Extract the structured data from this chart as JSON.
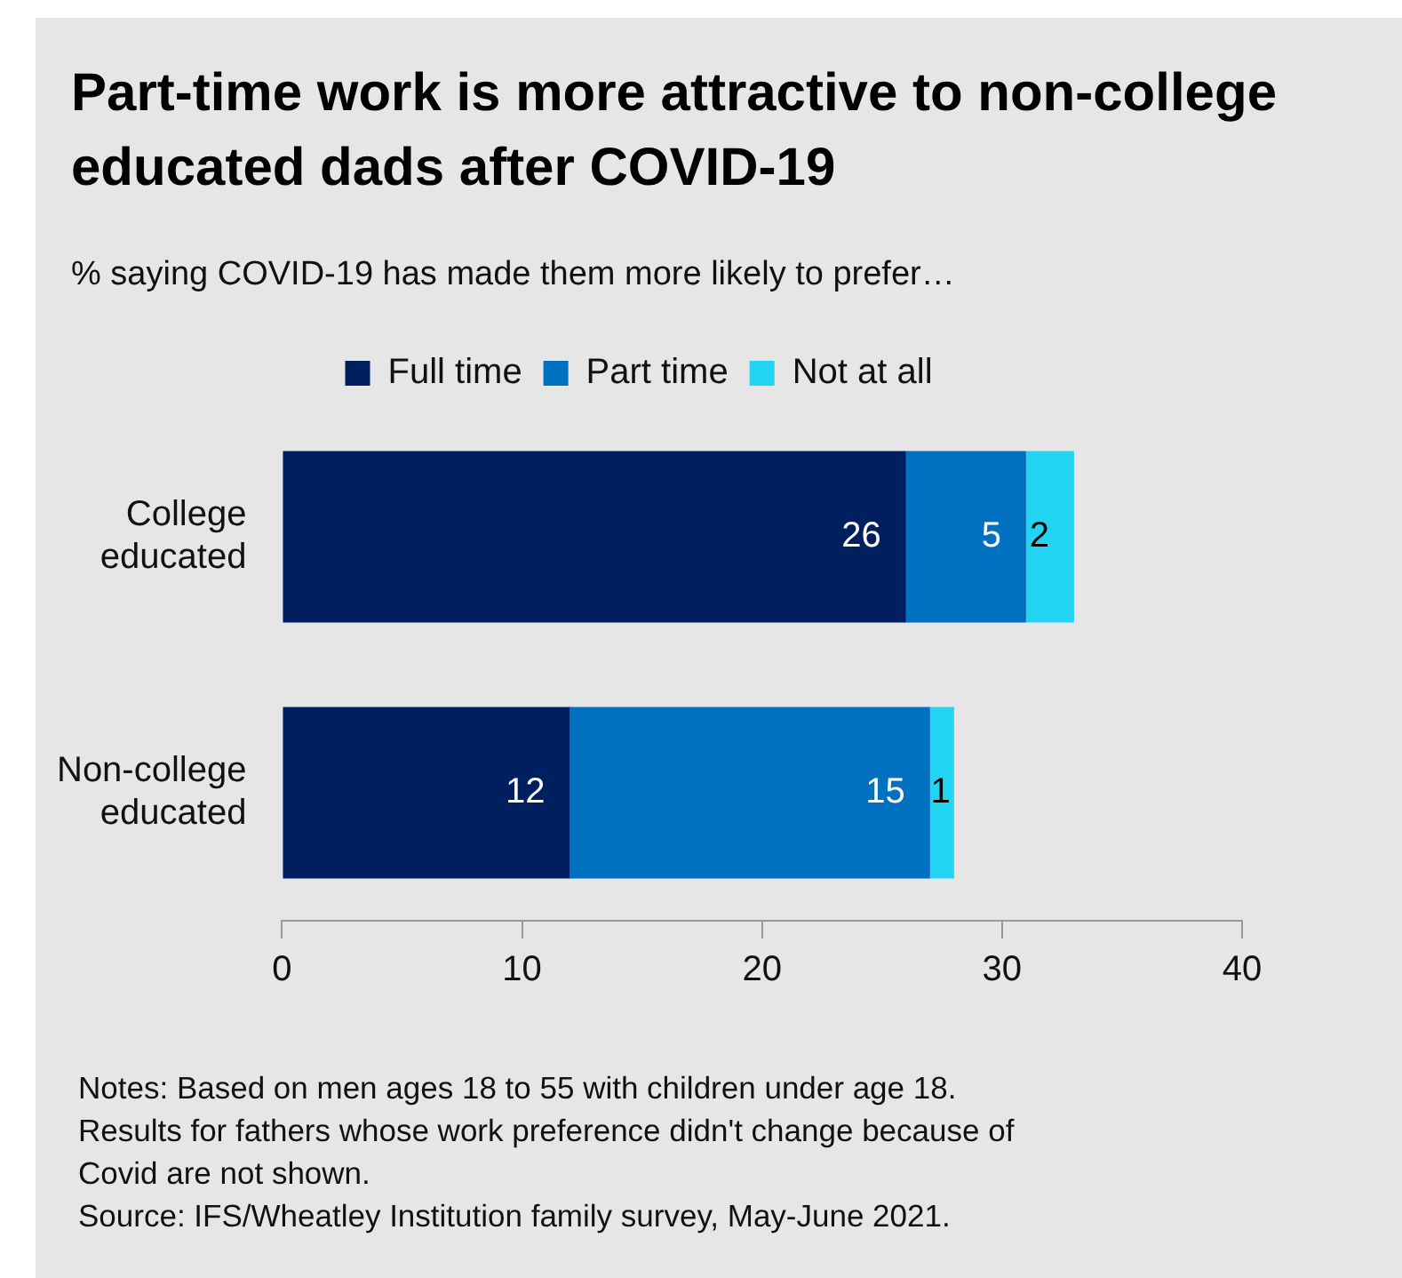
{
  "chart_data": {
    "type": "bar",
    "orientation": "horizontal",
    "stacked": true,
    "title": "Part-time work is more attractive to non-college educated dads after COVID-19",
    "subtitle": "% saying COVID-19 has made them more likely to prefer…",
    "categories": [
      "College educated",
      "Non-college educated"
    ],
    "series": [
      {
        "name": "Full time",
        "color": "#001f5f",
        "values": [
          26,
          12
        ]
      },
      {
        "name": "Part time",
        "color": "#0070c0",
        "values": [
          5,
          15
        ]
      },
      {
        "name": "Not at all",
        "color": "#22d3f2",
        "values": [
          2,
          1
        ]
      }
    ],
    "xlim": [
      0,
      40
    ],
    "xticks": [
      0,
      10,
      20,
      30,
      40
    ],
    "grid": false,
    "legend": "top",
    "data_labels": true,
    "annotations": [
      "Notes: Based on men ages 18 to 55 with children under age 18. Results for fathers whose work preference didn't change because of Covid are not shown.",
      "Source: IFS/Wheatley Institution family survey, May-June 2021."
    ]
  }
}
